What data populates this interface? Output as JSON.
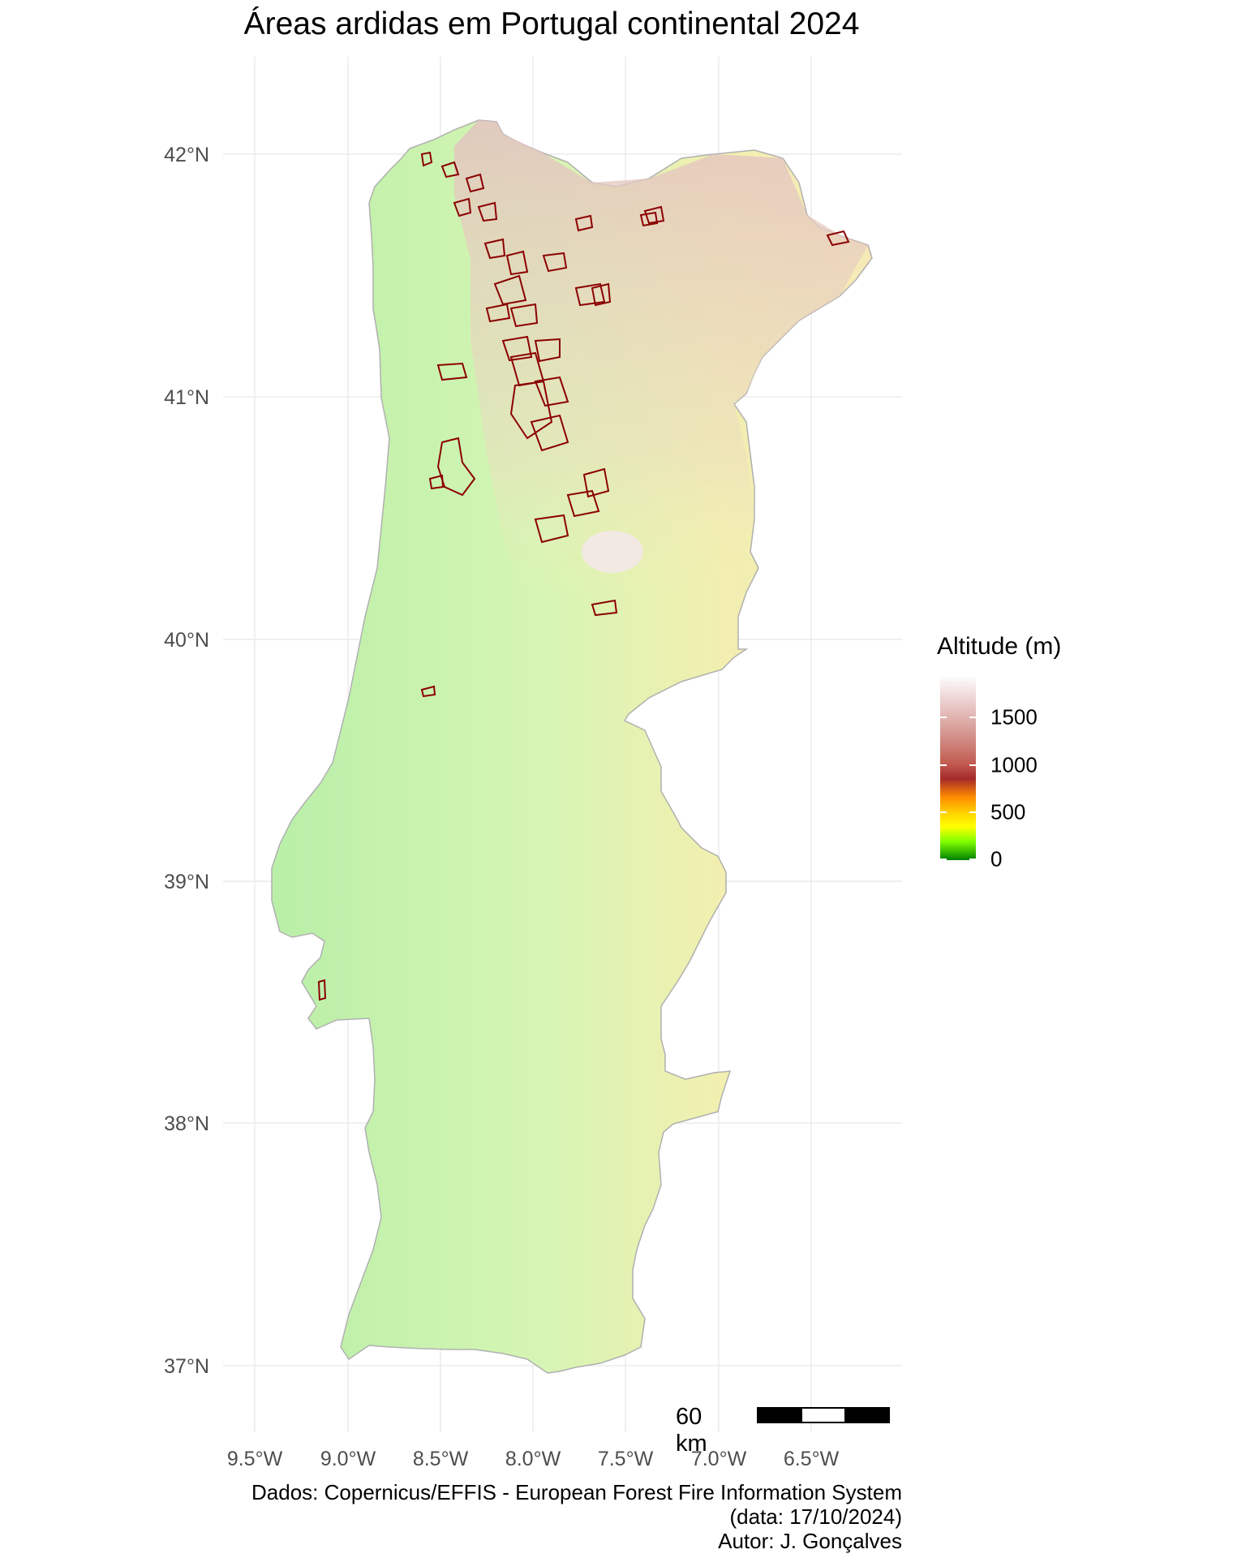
{
  "title": "Áreas ardidas em Portugal continental 2024",
  "axes": {
    "y_ticks": [
      "42°N",
      "41°N",
      "40°N",
      "39°N",
      "38°N",
      "37°N"
    ],
    "x_ticks": [
      "9.5°W",
      "9.0°W",
      "8.5°W",
      "8.0°W",
      "7.5°W",
      "7.0°W",
      "6.5°W"
    ],
    "grid": true
  },
  "legend": {
    "title": "Altitude (m)",
    "labels": [
      "1500",
      "1000",
      "500",
      "0"
    ],
    "colors": {
      "top": "#ffffff",
      "high": "#c25a50",
      "mid": "#a52a2a",
      "orange": "#ff8c00",
      "yellow": "#ffff00",
      "low": "#008000"
    }
  },
  "map": {
    "burned_outline_color": "#8b0000",
    "land_base_color": "#c8f0b4",
    "highland_color": "#dcb8a8"
  },
  "scalebar": {
    "label": "60 km"
  },
  "caption": {
    "line1": "Dados: Copernicus/EFFIS - European Forest Fire Information System",
    "line2": "(data: 17/10/2024)",
    "line3": "Autor: J. Gonçalves"
  }
}
